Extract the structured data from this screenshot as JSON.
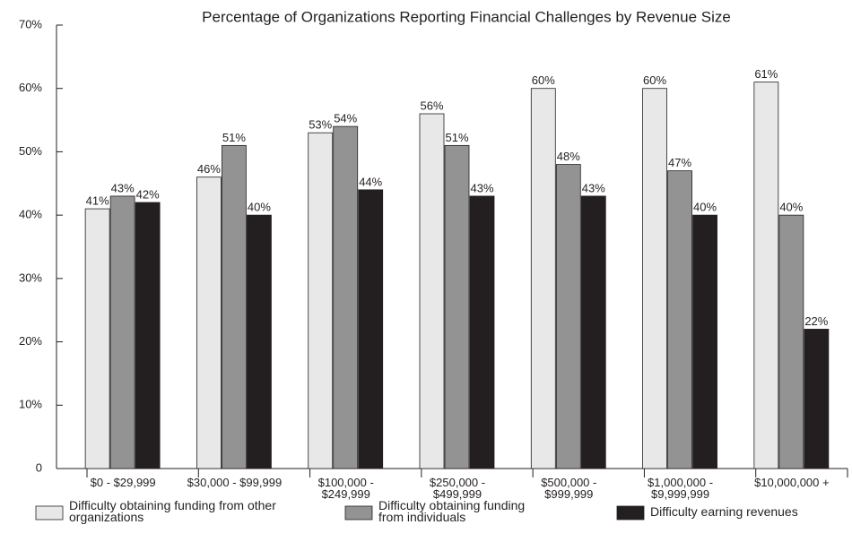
{
  "chart_data": {
    "type": "bar",
    "title": "Percentage of Organizations Reporting Financial Challenges by Revenue Size",
    "categories": [
      "$0 - $29,999",
      "$30,000 - $99,999",
      "$100,000 - $249,999",
      "$250,000 - $499,999",
      "$500,000 - $999,999",
      "$1,000,000 - $9,999,999",
      "$10,000,000 +"
    ],
    "series": [
      {
        "name": "Difficulty obtaining funding from other organizations",
        "color": "#e8e8e8",
        "values": [
          41,
          46,
          53,
          56,
          60,
          60,
          61
        ],
        "value_labels": [
          "41%",
          "46%",
          "53%",
          "56%",
          "60%",
          "60%",
          "61%"
        ]
      },
      {
        "name": "Difficulty obtaining funding from individuals",
        "color": "#939393",
        "values": [
          43,
          51,
          54,
          51,
          48,
          47,
          40
        ],
        "value_labels": [
          "43%",
          "51%",
          "54%",
          "51%",
          "48%",
          "47%",
          "40%"
        ]
      },
      {
        "name": "Difficulty earning revenues",
        "color": "#231f20",
        "values": [
          42,
          40,
          44,
          43,
          43,
          40,
          22
        ],
        "value_labels": [
          "42%",
          "40%",
          "44%",
          "43%",
          "43%",
          "40%",
          "22%"
        ]
      }
    ],
    "ylim": [
      0,
      70
    ],
    "yticks": [
      0,
      {
        "value": 10,
        "label": "10%"
      },
      {
        "value": 20,
        "label": "20%"
      },
      {
        "value": 30,
        "label": "30%"
      },
      {
        "value": 40,
        "label": "40%"
      },
      {
        "value": 50,
        "label": "50%"
      },
      {
        "value": 60,
        "label": "60%"
      },
      {
        "value": 70,
        "label": "70%"
      }
    ],
    "grid": false,
    "legend": "bottom"
  }
}
